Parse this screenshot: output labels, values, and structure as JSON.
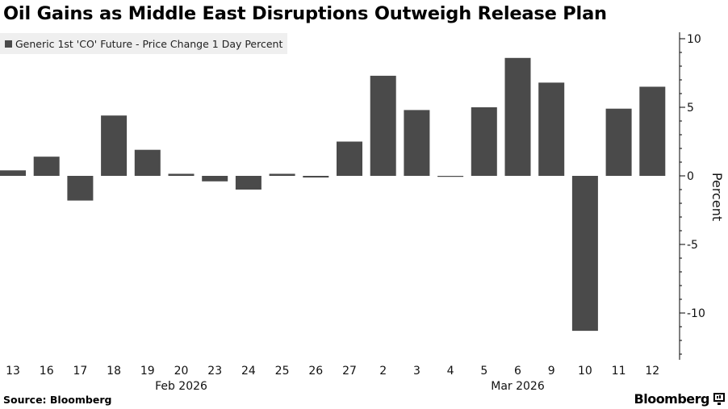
{
  "header": {
    "title": "Oil Gains as Middle East Disruptions Outweigh Release Plan"
  },
  "legend": {
    "label": "Generic 1st 'CO' Future - Price Change 1 Day Percent",
    "color": "#4a4a4a"
  },
  "footer": {
    "source": "Source: Bloomberg",
    "brand": "Bloomberg",
    "brand_icon": "bloomberg-terminal-icon"
  },
  "chart_data": {
    "type": "bar",
    "categories": [
      "13",
      "16",
      "17",
      "18",
      "19",
      "20",
      "23",
      "24",
      "25",
      "26",
      "27",
      "2",
      "3",
      "4",
      "5",
      "6",
      "9",
      "10",
      "11",
      "12"
    ],
    "month_labels": [
      {
        "label": "Feb 2026",
        "under_category": "20"
      },
      {
        "label": "Mar 2026",
        "under_category": "6"
      }
    ],
    "series": [
      {
        "name": "Generic 1st 'CO' Future - Price Change 1 Day Percent",
        "values": [
          0.4,
          1.4,
          -1.8,
          4.4,
          1.9,
          0.15,
          -0.4,
          -1.0,
          0.15,
          -0.12,
          2.5,
          7.3,
          4.8,
          -0.05,
          5.0,
          8.6,
          6.8,
          -11.3,
          4.9,
          6.5
        ]
      }
    ],
    "ylabel": "Percent",
    "yticks": [
      10,
      5,
      0,
      -5,
      -10
    ],
    "ylim": [
      -13,
      10.5
    ],
    "bar_color": "#4a4a4a",
    "grid": false,
    "legend_position": "top-left"
  }
}
